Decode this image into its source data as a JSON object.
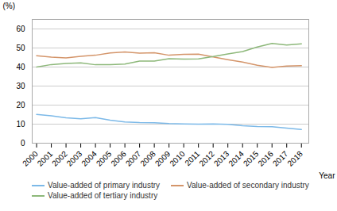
{
  "chart_data": {
    "type": "line",
    "xlabel": "Year",
    "ylabel": "(%)",
    "x": [
      2000,
      2001,
      2002,
      2003,
      2004,
      2005,
      2006,
      2007,
      2008,
      2009,
      2010,
      2011,
      2012,
      2013,
      2014,
      2015,
      2016,
      2017,
      2018
    ],
    "xlim": [
      1999.7,
      2018.5
    ],
    "xticks": [
      2000,
      2001,
      2002,
      2003,
      2004,
      2005,
      2006,
      2007,
      2008,
      2009,
      2010,
      2011,
      2012,
      2013,
      2014,
      2015,
      2016,
      2017,
      2018
    ],
    "ylim": [
      0,
      65
    ],
    "yticks": [
      0,
      10,
      20,
      30,
      40,
      50,
      60
    ],
    "grid": true,
    "legend": "bottom",
    "series": [
      {
        "name": "Value-added of primary industry",
        "color": "#7cb9e8",
        "values": [
          15.1,
          14.4,
          13.3,
          12.8,
          13.4,
          12.1,
          11.1,
          10.8,
          10.7,
          10.3,
          10.1,
          10.0,
          10.1,
          9.9,
          9.2,
          8.8,
          8.6,
          7.9,
          7.2
        ]
      },
      {
        "name": "Value-added of secondary industry",
        "color": "#d4956a",
        "values": [
          45.9,
          45.2,
          44.8,
          45.6,
          46.2,
          47.4,
          47.9,
          47.3,
          47.5,
          46.2,
          46.7,
          46.8,
          45.3,
          43.9,
          42.6,
          40.9,
          39.8,
          40.5,
          40.7
        ]
      },
      {
        "name": "Value-added of tertiary industry",
        "color": "#8db87a",
        "values": [
          40.0,
          41.3,
          41.9,
          42.2,
          41.2,
          41.3,
          41.6,
          43.1,
          43.1,
          44.4,
          44.2,
          44.3,
          45.5,
          46.9,
          48.1,
          50.5,
          52.4,
          51.6,
          52.2
        ]
      }
    ]
  }
}
